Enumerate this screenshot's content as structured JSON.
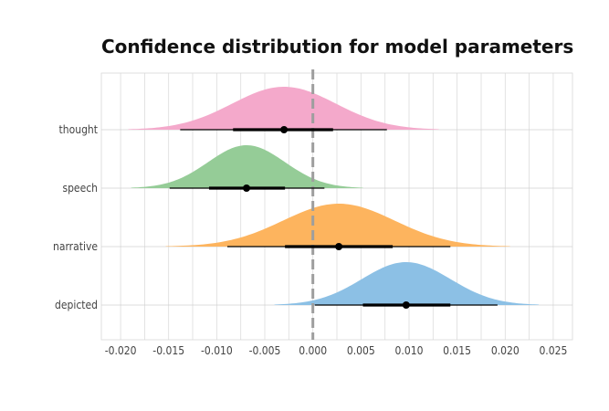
{
  "chart_data": {
    "type": "area",
    "title": "Confidence distribution for model parameters",
    "xlabel": "",
    "ylabel": "",
    "xlim": [
      -0.022,
      0.027
    ],
    "x_ticks": [
      "-0.020",
      "-0.015",
      "-0.010",
      "-0.005",
      "0.000",
      "0.005",
      "0.010",
      "0.015",
      "0.020",
      "0.025"
    ],
    "x_tick_values": [
      -0.02,
      -0.015,
      -0.01,
      -0.005,
      0.0,
      0.005,
      0.01,
      0.015,
      0.02,
      0.025
    ],
    "categories": [
      "thought",
      "speech",
      "narrative",
      "depicted"
    ],
    "reference_line_x": 0.0,
    "grid": true,
    "series": [
      {
        "category": "thought",
        "color": "#F4A9CB",
        "mean": -0.003,
        "sd": 0.0054,
        "interval_66": [
          -0.0083,
          0.0021
        ],
        "interval_95": [
          -0.0138,
          0.0077
        ],
        "density_range": [
          -0.0192,
          0.0131
        ]
      },
      {
        "category": "speech",
        "color": "#95CC97",
        "mean": -0.0069,
        "sd": 0.004,
        "interval_66": [
          -0.0108,
          -0.0029
        ],
        "interval_95": [
          -0.0149,
          0.0012
        ],
        "density_range": [
          -0.0189,
          0.0052
        ]
      },
      {
        "category": "narrative",
        "color": "#FDB45E",
        "mean": 0.0027,
        "sd": 0.0058,
        "interval_66": [
          -0.0029,
          0.0083
        ],
        "interval_95": [
          -0.0089,
          0.0143
        ],
        "density_range": [
          -0.0153,
          0.0205
        ]
      },
      {
        "category": "depicted",
        "color": "#8CC0E5",
        "mean": 0.0097,
        "sd": 0.0046,
        "interval_66": [
          0.0052,
          0.0143
        ],
        "interval_95": [
          0.0002,
          0.0192
        ],
        "density_range": [
          -0.004,
          0.0235
        ]
      }
    ]
  }
}
